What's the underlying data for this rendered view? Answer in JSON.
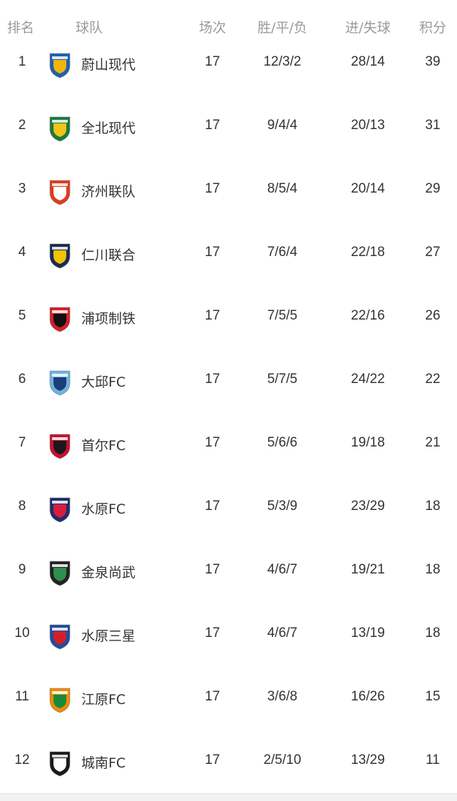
{
  "header": {
    "rank": "排名",
    "team": "球队",
    "played": "场次",
    "wdl": "胜/平/负",
    "goals": "进/失球",
    "points": "积分"
  },
  "rows": [
    {
      "rank": "1",
      "team": "蔚山现代",
      "played": "17",
      "wdl": "12/3/2",
      "goals": "28/14",
      "points": "39",
      "logo": "ulsan-hyundai-logo",
      "colors": [
        "#1f5fb0",
        "#f2b705"
      ]
    },
    {
      "rank": "2",
      "team": "全北现代",
      "played": "17",
      "wdl": "9/4/4",
      "goals": "20/13",
      "points": "31",
      "logo": "jeonbuk-logo",
      "colors": [
        "#1a7a3c",
        "#f0c419"
      ]
    },
    {
      "rank": "3",
      "team": "济州联队",
      "played": "17",
      "wdl": "8/5/4",
      "goals": "20/14",
      "points": "29",
      "logo": "jeju-united-logo",
      "colors": [
        "#e03c1f",
        "#ffffff"
      ]
    },
    {
      "rank": "4",
      "team": "仁川联合",
      "played": "17",
      "wdl": "7/6/4",
      "goals": "22/18",
      "points": "27",
      "logo": "incheon-united-logo",
      "colors": [
        "#1b2a55",
        "#f2c300"
      ]
    },
    {
      "rank": "5",
      "team": "浦项制铁",
      "played": "17",
      "wdl": "7/5/5",
      "goals": "22/16",
      "points": "26",
      "logo": "pohang-steelers-logo",
      "colors": [
        "#d61f26",
        "#111111"
      ]
    },
    {
      "rank": "6",
      "team": "大邱FC",
      "played": "17",
      "wdl": "5/7/5",
      "goals": "24/22",
      "points": "22",
      "logo": "daegu-fc-logo",
      "colors": [
        "#6fb3e0",
        "#1c3f7a"
      ]
    },
    {
      "rank": "7",
      "team": "首尔FC",
      "played": "17",
      "wdl": "5/6/6",
      "goals": "19/18",
      "points": "21",
      "logo": "fc-seoul-logo",
      "colors": [
        "#c8102e",
        "#1a1a1a"
      ]
    },
    {
      "rank": "8",
      "team": "水原FC",
      "played": "17",
      "wdl": "5/3/9",
      "goals": "23/29",
      "points": "18",
      "logo": "suwon-fc-logo",
      "colors": [
        "#1e2d6b",
        "#d81e3c"
      ]
    },
    {
      "rank": "9",
      "team": "金泉尚武",
      "played": "17",
      "wdl": "4/6/7",
      "goals": "19/21",
      "points": "18",
      "logo": "gimcheon-sangmu-logo",
      "colors": [
        "#222222",
        "#2f8f4e"
      ]
    },
    {
      "rank": "10",
      "team": "水原三星",
      "played": "17",
      "wdl": "4/6/7",
      "goals": "13/19",
      "points": "18",
      "logo": "suwon-samsung-logo",
      "colors": [
        "#1d4ea0",
        "#d0202a"
      ]
    },
    {
      "rank": "11",
      "team": "江原FC",
      "played": "17",
      "wdl": "3/6/8",
      "goals": "16/26",
      "points": "15",
      "logo": "gangwon-fc-logo",
      "colors": [
        "#f08a00",
        "#178a3e"
      ]
    },
    {
      "rank": "12",
      "team": "城南FC",
      "played": "17",
      "wdl": "2/5/10",
      "goals": "13/29",
      "points": "11",
      "logo": "seongnam-fc-logo",
      "colors": [
        "#1a1a1a",
        "#ffffff"
      ]
    }
  ]
}
